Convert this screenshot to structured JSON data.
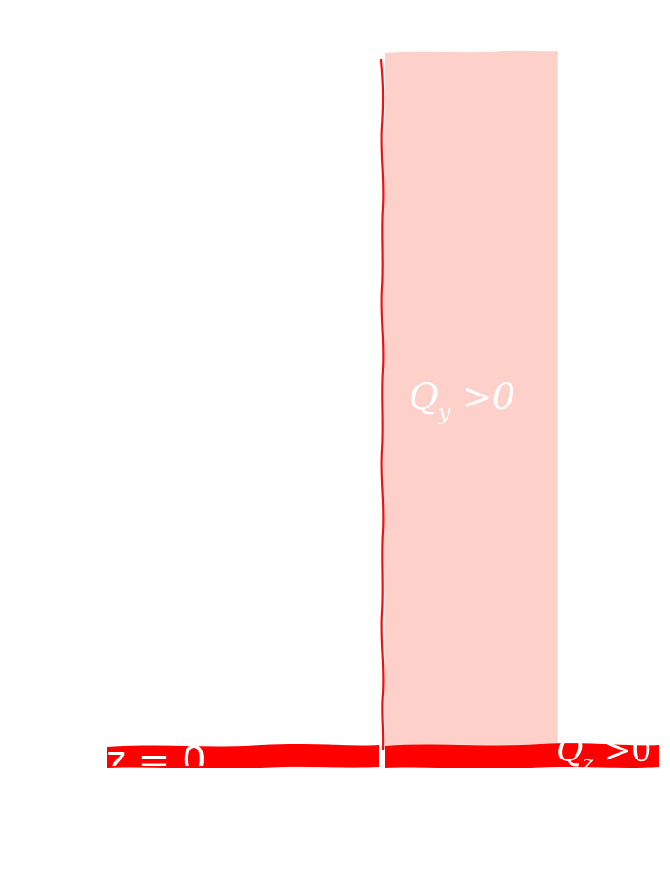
{
  "labels": {
    "region_label": "Q",
    "region_label_sub": "y",
    "region_label_rel": " >0",
    "axis_label": "z = 0",
    "corner_label": "Q",
    "corner_label_sub": "z",
    "corner_label_rel": " >0"
  },
  "colors": {
    "region_fill": "#fdd1ca",
    "boundary_line": "#ee1111",
    "band": "#ff0000",
    "label_text": "#ffffff",
    "background": "#ffffff"
  }
}
